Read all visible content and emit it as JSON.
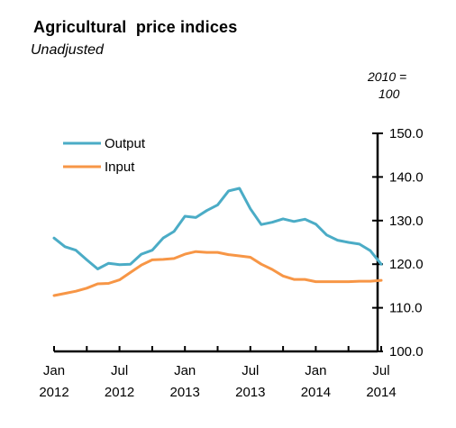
{
  "chart_data": {
    "type": "line",
    "title": "Agricultural  price indices",
    "subtitle": "Unadjusted",
    "unit_label_line1": "2010 =",
    "unit_label_line2": "100",
    "ylim": [
      100,
      150
    ],
    "y_ticks": [
      "100.0",
      "110.0",
      "120.0",
      "130.0",
      "140.0",
      "150.0"
    ],
    "x_labels": [
      {
        "month": "Jan",
        "year": "2012",
        "index": 0
      },
      {
        "month": "Jul",
        "year": "2012",
        "index": 6
      },
      {
        "month": "Jan",
        "year": "2013",
        "index": 12
      },
      {
        "month": "Jul",
        "year": "2013",
        "index": 18
      },
      {
        "month": "Jan",
        "year": "2014",
        "index": 24
      },
      {
        "month": "Jul",
        "year": "2014",
        "index": 30
      }
    ],
    "x": [
      "Jan 2012",
      "Feb 2012",
      "Mar 2012",
      "Apr 2012",
      "May 2012",
      "Jun 2012",
      "Jul 2012",
      "Aug 2012",
      "Sep 2012",
      "Oct 2012",
      "Nov 2012",
      "Dec 2012",
      "Jan 2013",
      "Feb 2013",
      "Mar 2013",
      "Apr 2013",
      "May 2013",
      "Jun 2013",
      "Jul 2013",
      "Aug 2013",
      "Sep 2013",
      "Oct 2013",
      "Nov 2013",
      "Dec 2013",
      "Jan 2014",
      "Feb 2014",
      "Mar 2014",
      "Apr 2014",
      "May 2014",
      "Jun 2014",
      "Jul 2014"
    ],
    "series": [
      {
        "name": "Output",
        "color": "#4bacc6",
        "values": [
          126.0,
          124.0,
          123.2,
          121.0,
          118.9,
          120.2,
          119.9,
          120.0,
          122.3,
          123.2,
          126.0,
          127.5,
          131.0,
          130.7,
          132.3,
          133.6,
          136.8,
          137.4,
          132.7,
          129.1,
          129.6,
          130.4,
          129.8,
          130.3,
          129.2,
          126.7,
          125.5,
          125.0,
          124.6,
          123.1,
          120.0
        ]
      },
      {
        "name": "Input",
        "color": "#f79646",
        "values": [
          112.8,
          113.3,
          113.8,
          114.5,
          115.5,
          115.6,
          116.4,
          118.1,
          119.8,
          121.0,
          121.1,
          121.3,
          122.3,
          122.9,
          122.7,
          122.7,
          122.2,
          121.9,
          121.6,
          120.0,
          118.8,
          117.3,
          116.5,
          116.5,
          116.0,
          116.0,
          116.0,
          116.0,
          116.1,
          116.1,
          116.3
        ]
      }
    ],
    "legend_position": "top-left",
    "grid": false
  }
}
